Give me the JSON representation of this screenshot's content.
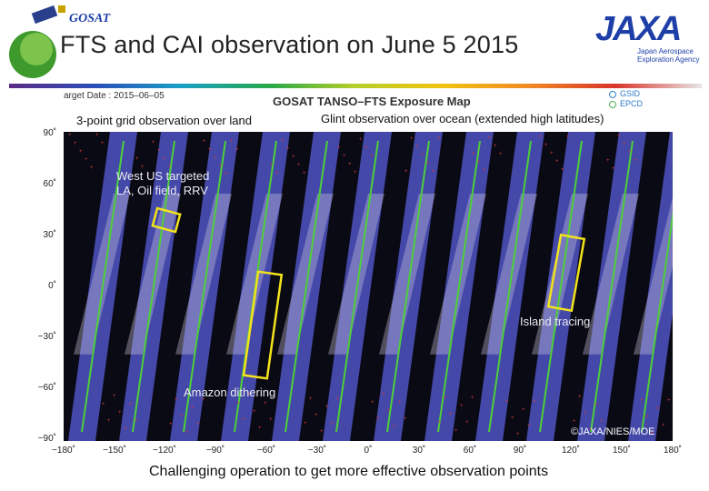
{
  "header": {
    "title": "FTS and CAI observation on June 5 2015",
    "gosat_logo_text": "GOSAT",
    "jaxa_logo_text": "JAXA",
    "jaxa_subtitle_line1": "Japan Aerospace",
    "jaxa_subtitle_line2": "Exploration Agency"
  },
  "map": {
    "title": "GOSAT TANSO–FTS Exposure Map",
    "target_date": "arget Date : 2015–06–05",
    "legend": [
      {
        "label": "GSID",
        "color": "#2e7fc8"
      },
      {
        "label": "EPCD",
        "color": "#4caf50"
      }
    ],
    "y_ticks": [
      "90˚",
      "60˚",
      "30˚",
      "0˚",
      "−30˚",
      "−60˚",
      "−90˚"
    ],
    "x_ticks": [
      "−180˚",
      "−150˚",
      "−120˚",
      "−90˚",
      "−60˚",
      "−30˚",
      "0˚",
      "30˚",
      "60˚",
      "90˚",
      "120˚",
      "150˚",
      "180˚"
    ],
    "copyright": "©JAXA/NIES/MOE",
    "colors": {
      "ocean": "#0a0a14",
      "cloud": "#d6d0e6",
      "swath": "#4a4fb8",
      "track": "#4cd03a",
      "grid": "#d43a3a",
      "box": "#f3e31c"
    }
  },
  "annotations": {
    "land": "3-point grid observation over land",
    "ocean": "Glint observation over ocean (extended high latitudes)",
    "westus_line1": "West US targeted",
    "westus_line2": "LA, Oil field, RRV",
    "island": "Island tracing",
    "amazon": "Amazon dithering"
  },
  "caption": "Challenging operation to get more effective observation points"
}
